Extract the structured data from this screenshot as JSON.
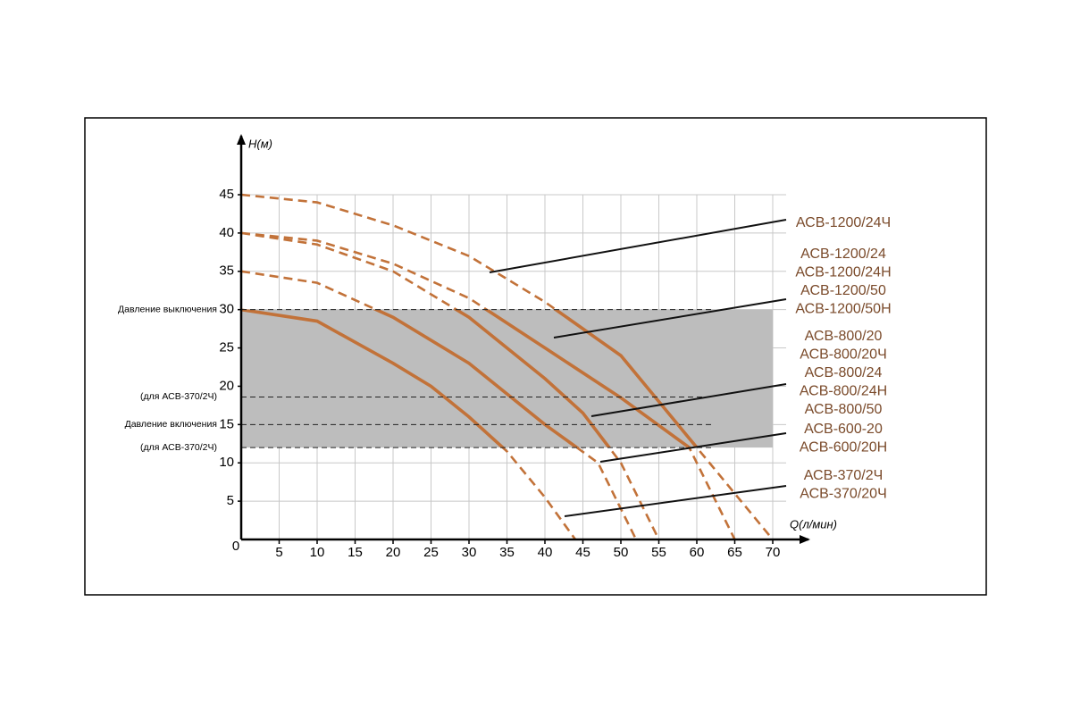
{
  "chart_data": {
    "type": "line",
    "x_label": "Q(л/мин)",
    "y_label": "H(м)",
    "xlim": [
      0,
      70
    ],
    "ylim": [
      0,
      45
    ],
    "xticks": [
      0,
      5,
      10,
      15,
      20,
      25,
      30,
      35,
      40,
      45,
      50,
      55,
      60,
      65,
      70
    ],
    "yticks": [
      5,
      10,
      15,
      20,
      25,
      30,
      35,
      40,
      45
    ],
    "grid": true,
    "color": "#c27239",
    "reference_lines": [
      {
        "value": 30,
        "label": "Давление выключения"
      },
      {
        "value": 18.6,
        "label": "(для АСВ-370/2Ч)"
      },
      {
        "value": 15,
        "label": "Давление включения"
      },
      {
        "value": 12,
        "label": "(для АСВ-370/2Ч)"
      }
    ],
    "series": [
      {
        "name": [
          "АСВ-1200/24Ч"
        ],
        "x": [
          0,
          10,
          20,
          30,
          40,
          50,
          60,
          70
        ],
        "values": [
          45,
          44,
          41,
          37,
          31,
          24,
          12,
          0
        ]
      },
      {
        "name": [
          "АСВ-1200/24",
          "АСВ-1200/24Н",
          "АСВ-1200/50",
          "АСВ-1200/50Н"
        ],
        "x": [
          0,
          10,
          20,
          30,
          40,
          50,
          59,
          65
        ],
        "values": [
          40,
          39,
          36,
          31.5,
          25,
          18.5,
          12,
          0
        ]
      },
      {
        "name": [
          "АСВ-800/20",
          "АСВ-800/20Ч",
          "АСВ-800/24",
          "АСВ-800/24Н",
          "АСВ-800/50"
        ],
        "x": [
          0,
          10,
          20,
          30,
          40,
          45,
          50,
          55
        ],
        "values": [
          40,
          38.5,
          35,
          29,
          21,
          16.5,
          10,
          0
        ]
      },
      {
        "name": [
          "АСВ-600-20",
          "АСВ-600/20Н"
        ],
        "x": [
          0,
          10,
          20,
          30,
          40,
          47,
          52
        ],
        "values": [
          35,
          33.5,
          29,
          23,
          15,
          10,
          0
        ]
      },
      {
        "name": [
          "АСВ-370/2Ч",
          "АСВ-370/20Ч"
        ],
        "x": [
          0,
          10,
          20,
          25,
          30,
          35,
          40,
          44
        ],
        "values": [
          30,
          28.5,
          23,
          20,
          16,
          11.5,
          5.5,
          0
        ]
      }
    ]
  }
}
